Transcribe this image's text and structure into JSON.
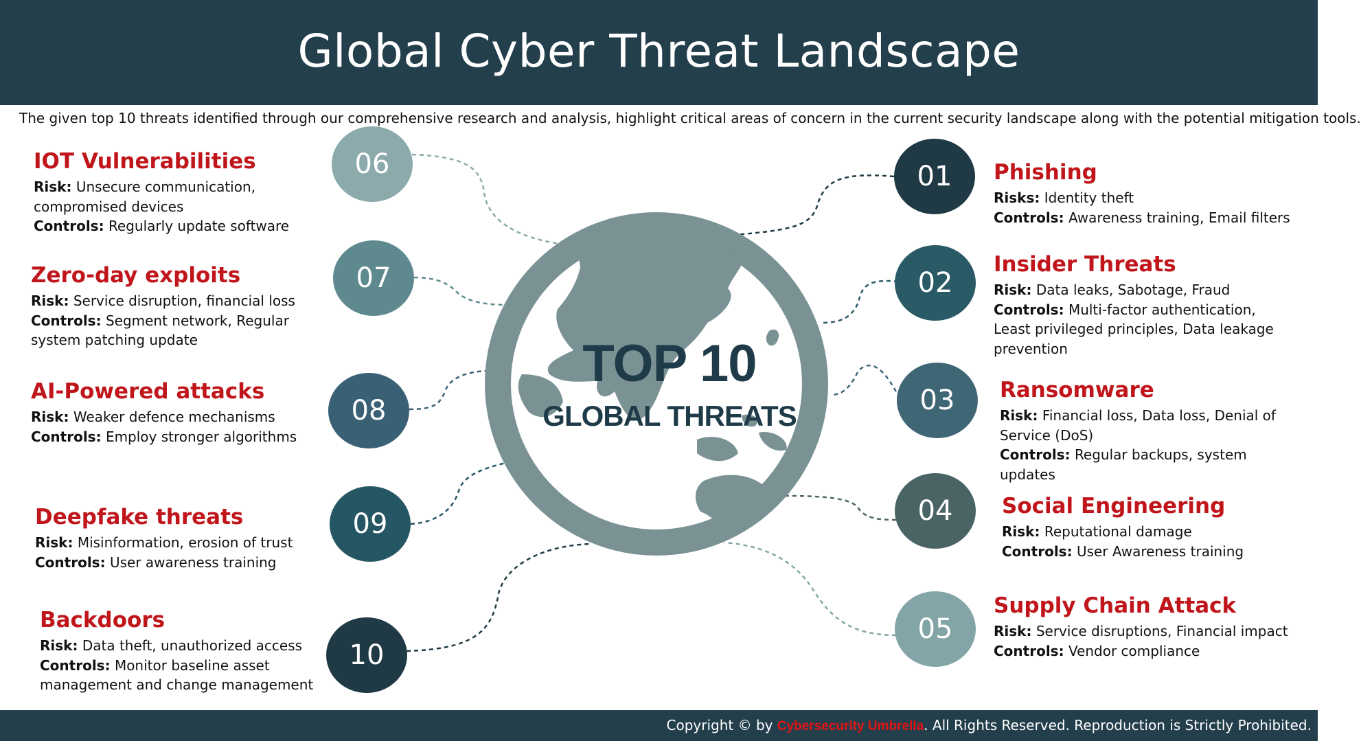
{
  "header": {
    "title": "Global Cyber Threat Landscape"
  },
  "subtitle": "The given top 10 threats identified through our comprehensive research and analysis, highlight critical areas of concern in the current security landscape along with the potential mitigation tools.",
  "center": {
    "line1": "TOP 10",
    "line2": "GLOBAL THREATS"
  },
  "colors": {
    "header_bg": "#243f4c",
    "threat_title": "#c0161b",
    "globe": "#7a9294",
    "brand": "#e01414"
  },
  "threats": [
    {
      "number": "01",
      "name": "Phishing",
      "risk_label": "Risks:",
      "risk": "Identity theft",
      "controls_label": "Controls:",
      "controls": "Awareness training, Email filters",
      "color": "#1f3a44"
    },
    {
      "number": "02",
      "name": "Insider Threats",
      "risk_label": "Risk:",
      "risk": "Data leaks, Sabotage, Fraud",
      "controls_label": "Controls:",
      "controls": "Multi-factor authentication, Least privileged principles, Data leakage prevention",
      "color": "#2a5a66"
    },
    {
      "number": "03",
      "name": "Ransomware",
      "risk_label": "Risk:",
      "risk": "Financial loss, Data loss, Denial of Service (DoS)",
      "controls_label": "Controls:",
      "controls": "Regular backups, system updates",
      "color": "#3e6675"
    },
    {
      "number": "04",
      "name": "Social Engineering",
      "risk_label": "Risk:",
      "risk": "Reputational damage",
      "controls_label": "Controls:",
      "controls": "User Awareness training",
      "color": "#4a6465"
    },
    {
      "number": "05",
      "name": "Supply Chain Attack",
      "risk_label": "Risk:",
      "risk": "Service disruptions, Financial impact",
      "controls_label": "Controls:",
      "controls": "Vendor compliance",
      "color": "#84a5a8"
    },
    {
      "number": "06",
      "name": "IOT Vulnerabilities",
      "risk_label": "Risk:",
      "risk": "Unsecure communication, compromised devices",
      "controls_label": "Controls:",
      "controls": "Regularly update software",
      "color": "#8ca9ab"
    },
    {
      "number": "07",
      "name": "Zero-day exploits",
      "risk_label": "Risk:",
      "risk": "Service disruption, financial loss",
      "controls_label": "Controls:",
      "controls": "Segment network, Regular system patching update",
      "color": "#5e8a8f"
    },
    {
      "number": "08",
      "name": "AI-Powered attacks",
      "risk_label": "Risk:",
      "risk": "Weaker defence mechanisms",
      "controls_label": "Controls:",
      "controls": "Employ stronger algorithms",
      "color": "#3a6075"
    },
    {
      "number": "09",
      "name": "Deepfake threats",
      "risk_label": "Risk:",
      "risk": "Misinformation, erosion of trust",
      "controls_label": "Controls:",
      "controls": "User awareness training",
      "color": "#255663"
    },
    {
      "number": "10",
      "name": "Backdoors",
      "risk_label": "Risk:",
      "risk": "Data theft, unauthorized access",
      "controls_label": "Controls:",
      "controls": "Monitor baseline asset management and change management",
      "color": "#1f3a44"
    }
  ],
  "footer": {
    "prefix": "Copyright © by ",
    "brand": "Cybersecurity Umbrella",
    "suffix": ". All Rights Reserved. Reproduction is Strictly Prohibited."
  }
}
